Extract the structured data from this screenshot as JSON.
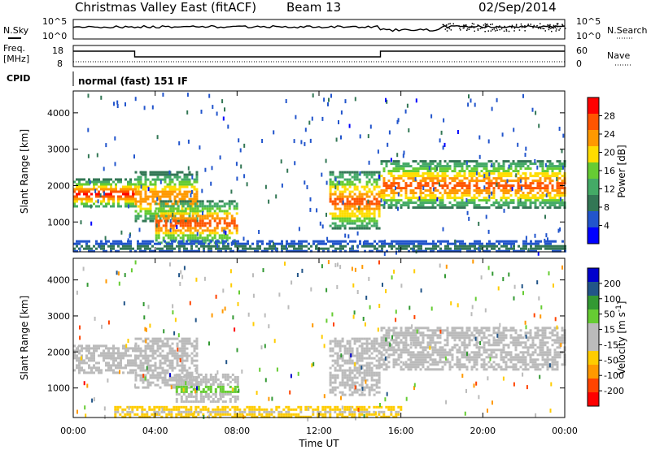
{
  "header": {
    "title": "Christmas Valley East (fitACF)",
    "beam": "Beam 13",
    "date": "02/Sep/2014"
  },
  "left_labels": {
    "nsky": "N.Sky",
    "freq_line1": "Freq.",
    "freq_line2": "[MHz]",
    "cpid": "CPID"
  },
  "right_labels": {
    "nsearch": "N.Search",
    "nave": "Nave"
  },
  "cpid_value": "normal (fast) 151 IF",
  "noise_panel": {
    "left_ticks": [
      "10^5",
      "10^0"
    ],
    "right_ticks": [
      "10^5",
      "10^0"
    ]
  },
  "freq_panel": {
    "left_ticks": [
      "18",
      "8"
    ],
    "right_ticks": [
      "60",
      "0"
    ]
  },
  "colors": {
    "scale": [
      "#0000ff",
      "#2255cc",
      "#337755",
      "#44aa66",
      "#66cc33",
      "#ffdd00",
      "#ff9900",
      "#ff5500",
      "#ff0000"
    ],
    "velocity_scale": [
      "#ff0000",
      "#ff4400",
      "#ff9900",
      "#ffcc00",
      "#bbbbbb",
      "#bbbbbb",
      "#66cc33",
      "#339933",
      "#225588",
      "#0000cc"
    ]
  },
  "chart_data": [
    {
      "type": "heatmap",
      "panel": "power",
      "xlabel": "",
      "ylabel": "Slant Range [km]",
      "x_ticks": [
        "00:00",
        "04:00",
        "08:00",
        "12:00",
        "16:00",
        "20:00",
        "00:00"
      ],
      "y_ticks": [
        "1000",
        "2000",
        "3000",
        "4000"
      ],
      "ylim": [
        180,
        4600
      ],
      "xlim_hours": [
        0,
        24
      ],
      "colorbar": {
        "label": "Power [dB]",
        "ticks": [
          "4",
          "8",
          "12",
          "16",
          "20",
          "24",
          "28"
        ],
        "range": [
          0,
          30
        ]
      },
      "regions": [
        {
          "t0": 0,
          "t1": 3,
          "r0": 1400,
          "r1": 2200,
          "peak": 27
        },
        {
          "t0": 3,
          "t1": 6,
          "r0": 1000,
          "r1": 2400,
          "peak": 24
        },
        {
          "t0": 4,
          "t1": 8,
          "r0": 400,
          "r1": 1600,
          "peak": 26
        },
        {
          "t0": 12.5,
          "t1": 15,
          "r0": 800,
          "r1": 2400,
          "peak": 25
        },
        {
          "t0": 15,
          "t1": 24,
          "r0": 1400,
          "r1": 2700,
          "peak": 26
        },
        {
          "t0": 0,
          "t1": 24,
          "r0": 180,
          "r1": 500,
          "peak": 10
        }
      ]
    },
    {
      "type": "heatmap",
      "panel": "velocity",
      "xlabel": "Time UT",
      "ylabel": "Slant Range [km]",
      "x_ticks": [
        "00:00",
        "04:00",
        "08:00",
        "12:00",
        "16:00",
        "20:00",
        "00:00"
      ],
      "y_ticks": [
        "1000",
        "2000",
        "3000",
        "4000"
      ],
      "ylim": [
        180,
        4600
      ],
      "xlim_hours": [
        0,
        24
      ],
      "colorbar": {
        "label": "Velocity [m s-1]",
        "ticks": [
          "200",
          "100",
          "50",
          "15",
          "-15",
          "-50",
          "-100",
          "-200"
        ],
        "range": [
          -250,
          250
        ]
      },
      "regions": [
        {
          "t0": 0,
          "t1": 3,
          "r0": 1400,
          "r1": 2200,
          "v": 0
        },
        {
          "t0": 3,
          "t1": 6,
          "r0": 1000,
          "r1": 2400,
          "v": 0
        },
        {
          "t0": 5,
          "t1": 8,
          "r0": 600,
          "r1": 1400,
          "v": 40
        },
        {
          "t0": 12.5,
          "t1": 15,
          "r0": 800,
          "r1": 2400,
          "v": 30
        },
        {
          "t0": 15,
          "t1": 24,
          "r0": 1500,
          "r1": 2700,
          "v": 0
        },
        {
          "t0": 2,
          "t1": 16,
          "r0": 180,
          "r1": 500,
          "v": -60
        }
      ]
    }
  ]
}
